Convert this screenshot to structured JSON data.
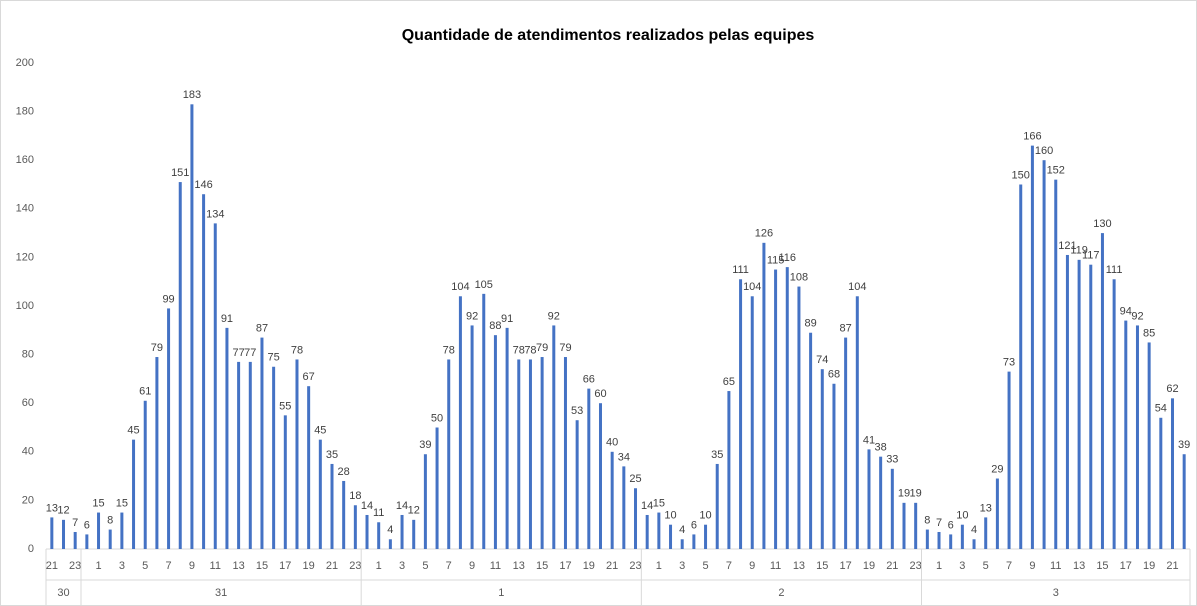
{
  "chart_data": {
    "type": "bar",
    "title": "Quantidade de atendimentos realizados pelas equipes",
    "color": "#4472c4",
    "ylim": [
      0,
      200
    ],
    "yticks": [
      0,
      20,
      40,
      60,
      80,
      100,
      120,
      140,
      160,
      180,
      200
    ],
    "groups": [
      {
        "name": "30",
        "categories": [
          "21",
          null,
          "23"
        ],
        "values": [
          13,
          12,
          7
        ]
      },
      {
        "name": "31",
        "categories": [
          null,
          "1",
          null,
          "3",
          null,
          "5",
          null,
          "7",
          null,
          "9",
          null,
          "11",
          null,
          "13",
          null,
          "15",
          null,
          "17",
          null,
          "19",
          null,
          "21",
          null,
          "23"
        ],
        "values": [
          6,
          15,
          8,
          15,
          45,
          61,
          79,
          99,
          151,
          183,
          146,
          134,
          91,
          77,
          77,
          87,
          75,
          55,
          78,
          67,
          45,
          35,
          28,
          18
        ]
      },
      {
        "name": "1",
        "categories": [
          null,
          "1",
          null,
          "3",
          null,
          "5",
          null,
          "7",
          null,
          "9",
          null,
          "11",
          null,
          "13",
          null,
          "15",
          null,
          "17",
          null,
          "19",
          null,
          "21",
          null,
          "23"
        ],
        "values": [
          14,
          11,
          4,
          14,
          12,
          39,
          50,
          78,
          104,
          92,
          105,
          88,
          91,
          78,
          78,
          79,
          92,
          79,
          53,
          66,
          60,
          40,
          34,
          25
        ]
      },
      {
        "name": "2",
        "categories": [
          null,
          "1",
          null,
          "3",
          null,
          "5",
          null,
          "7",
          null,
          "9",
          null,
          "11",
          null,
          "13",
          null,
          "15",
          null,
          "17",
          null,
          "19",
          null,
          "21",
          null,
          "23"
        ],
        "values": [
          14,
          15,
          10,
          4,
          6,
          10,
          35,
          65,
          111,
          104,
          126,
          115,
          116,
          108,
          89,
          74,
          68,
          87,
          104,
          41,
          38,
          33,
          19,
          19
        ]
      },
      {
        "name": "3",
        "categories": [
          null,
          "1",
          null,
          "3",
          null,
          "5",
          null,
          "7",
          null,
          "9",
          null,
          "11",
          null,
          "13",
          null,
          "15",
          null,
          "17",
          null,
          "19",
          null,
          "21",
          null
        ],
        "values": [
          8,
          7,
          6,
          10,
          4,
          13,
          29,
          73,
          150,
          166,
          160,
          152,
          121,
          119,
          117,
          130,
          111,
          94,
          92,
          85,
          54,
          62,
          39
        ]
      }
    ]
  }
}
